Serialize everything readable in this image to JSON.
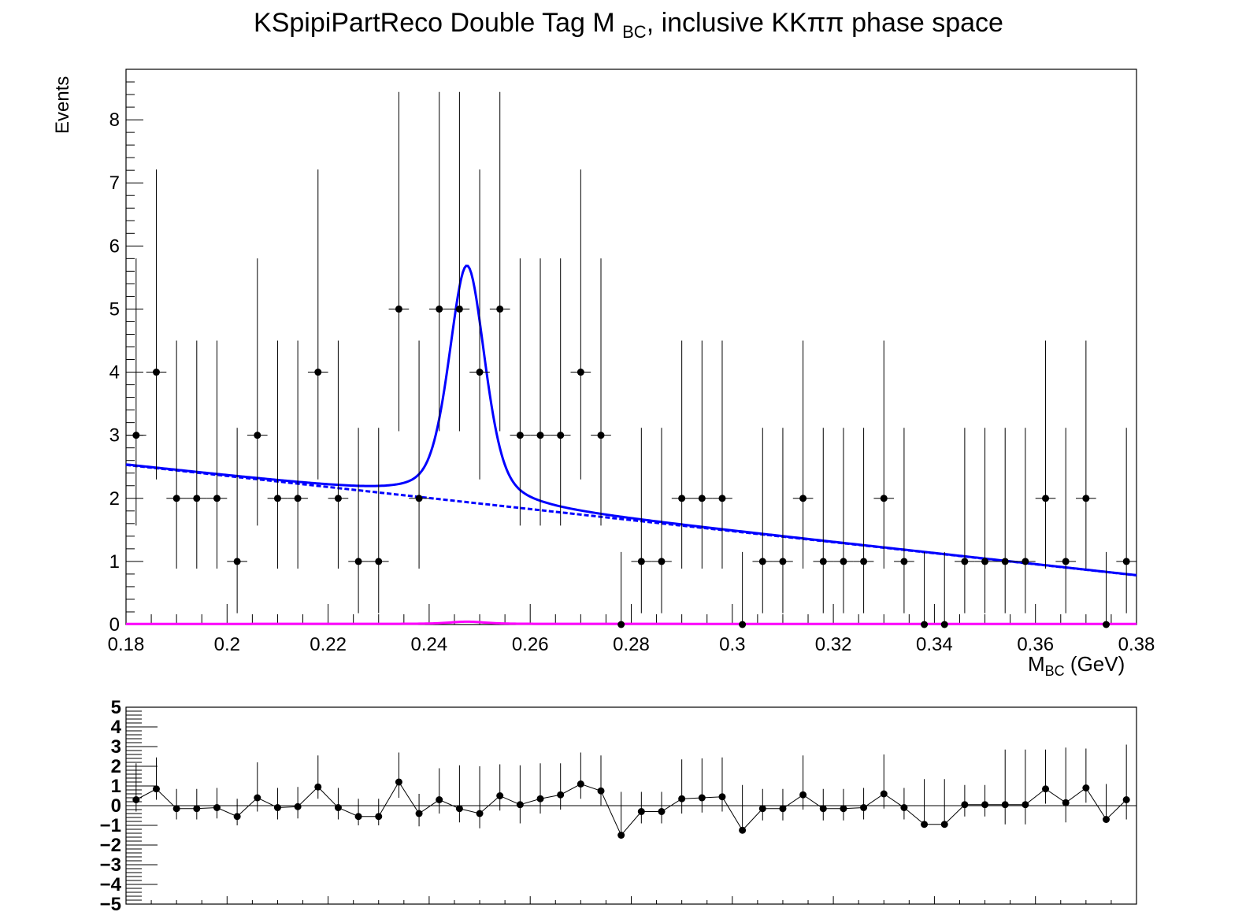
{
  "chart_data": [
    {
      "type": "scatter",
      "title_main": "KSpipiPartReco Double Tag M",
      "title_sub": "BC",
      "title_rest": ", inclusive KKππ phase space",
      "ylabel": "Events",
      "xlabel_main": "M",
      "xlabel_sub": "BC",
      "xlabel_rest": " (GeV)",
      "xlim": [
        0.18,
        0.38
      ],
      "ylim": [
        0,
        8.8
      ],
      "x_ticks": [
        "0.18",
        "0.2",
        "0.22",
        "0.24",
        "0.26",
        "0.28",
        "0.3",
        "0.32",
        "0.34",
        "0.36",
        "0.38"
      ],
      "y_ticks": [
        "0",
        "1",
        "2",
        "3",
        "4",
        "5",
        "6",
        "7",
        "8"
      ],
      "bin_width": 0.004,
      "x": [
        0.182,
        0.186,
        0.19,
        0.194,
        0.198,
        0.202,
        0.206,
        0.21,
        0.214,
        0.218,
        0.222,
        0.226,
        0.23,
        0.234,
        0.238,
        0.242,
        0.246,
        0.25,
        0.254,
        0.258,
        0.262,
        0.266,
        0.27,
        0.274,
        0.278,
        0.282,
        0.286,
        0.29,
        0.294,
        0.298,
        0.302,
        0.306,
        0.31,
        0.314,
        0.318,
        0.322,
        0.326,
        0.33,
        0.334,
        0.338,
        0.342,
        0.346,
        0.35,
        0.354,
        0.358,
        0.362,
        0.366,
        0.37,
        0.374,
        0.378
      ],
      "y": [
        3,
        4,
        2,
        2,
        2,
        1,
        3,
        2,
        2,
        4,
        2,
        1,
        1,
        5,
        2,
        5,
        5,
        4,
        5,
        3,
        3,
        3,
        4,
        3,
        0,
        1,
        1,
        2,
        2,
        2,
        0,
        1,
        1,
        2,
        1,
        1,
        1,
        2,
        1,
        0,
        0,
        1,
        1,
        1,
        1,
        2,
        1,
        2,
        0,
        1
      ],
      "series": [
        {
          "name": "",
          "style": "solid",
          "color": "#0000ff",
          "description": "total fit: linear background + peak at 0.2475 GeV, height 5.62"
        },
        {
          "name": "",
          "style": "dashed",
          "color": "#0000ff",
          "description": "background: linear from 2.53 at 0.18 to 0.78 at 0.38"
        },
        {
          "name": "",
          "style": "solid",
          "color": "#ff00ff",
          "description": "near-zero component"
        }
      ],
      "fit": {
        "bkg_at_xmin": 2.53,
        "bkg_at_xmax": 0.78,
        "peak_mean": 0.2475,
        "peak_amp": 3.75,
        "peak_sigma": 0.0035,
        "peak_gamma": 0.0045
      },
      "colors": {
        "data": "#000000",
        "fit": "#0000ff",
        "magenta": "#ff00ff"
      }
    },
    {
      "type": "scatter",
      "title": "",
      "ylabel": "",
      "xlim": [
        0.18,
        0.38
      ],
      "ylim": [
        -5,
        5
      ],
      "y_ticks": [
        "−5",
        "−4",
        "−3",
        "−2",
        "−1",
        "0",
        "1",
        "2",
        "3",
        "4",
        "5"
      ],
      "x": [
        0.182,
        0.186,
        0.19,
        0.194,
        0.198,
        0.202,
        0.206,
        0.21,
        0.214,
        0.218,
        0.222,
        0.226,
        0.23,
        0.234,
        0.238,
        0.242,
        0.246,
        0.25,
        0.254,
        0.258,
        0.262,
        0.266,
        0.27,
        0.274,
        0.278,
        0.282,
        0.286,
        0.29,
        0.294,
        0.298,
        0.302,
        0.306,
        0.31,
        0.314,
        0.318,
        0.322,
        0.326,
        0.33,
        0.334,
        0.338,
        0.342,
        0.346,
        0.35,
        0.354,
        0.358,
        0.362,
        0.366,
        0.37,
        0.374,
        0.378
      ],
      "y": [
        0.3,
        0.85,
        -0.15,
        -0.15,
        -0.1,
        -0.55,
        0.4,
        -0.1,
        -0.05,
        0.95,
        -0.1,
        -0.55,
        -0.55,
        1.2,
        -0.4,
        0.3,
        -0.15,
        -0.4,
        0.5,
        0.05,
        0.35,
        0.55,
        1.1,
        0.75,
        -1.5,
        -0.3,
        -0.3,
        0.35,
        0.4,
        0.45,
        -1.25,
        -0.15,
        -0.15,
        0.55,
        -0.15,
        -0.15,
        -0.1,
        0.6,
        -0.1,
        -0.95,
        -0.95,
        0.05,
        0.05,
        0.05,
        0.05,
        0.85,
        0.15,
        0.9,
        -0.7,
        0.3
      ],
      "yerr_up": [
        1.85,
        1.6,
        1.0,
        1.0,
        1.0,
        0.9,
        1.8,
        1.0,
        1.0,
        1.6,
        1.0,
        0.9,
        0.9,
        1.5,
        1.0,
        1.6,
        2.2,
        2.4,
        1.6,
        2.0,
        1.8,
        1.6,
        1.6,
        1.8,
        2.2,
        1.0,
        1.0,
        2.0,
        2.0,
        2.0,
        2.3,
        1.0,
        1.0,
        2.0,
        1.0,
        1.0,
        1.0,
        2.0,
        1.0,
        2.3,
        2.3,
        1.0,
        1.0,
        2.8,
        2.8,
        2.0,
        2.8,
        2.0,
        1.8,
        2.8
      ],
      "yerr_down": [
        0.6,
        0.55,
        0.55,
        0.55,
        0.55,
        0.45,
        0.7,
        0.6,
        0.6,
        0.6,
        0.6,
        0.45,
        0.45,
        0.8,
        0.65,
        0.7,
        0.7,
        0.75,
        0.75,
        0.95,
        0.75,
        0.75,
        0.75,
        0.75,
        0.0,
        0.6,
        0.6,
        0.75,
        0.75,
        0.75,
        0.0,
        0.6,
        0.6,
        0.75,
        0.6,
        0.6,
        0.6,
        0.75,
        0.6,
        0.0,
        0.0,
        0.6,
        0.6,
        1.0,
        1.0,
        0.75,
        1.0,
        0.75,
        0.0,
        1.0
      ]
    }
  ]
}
